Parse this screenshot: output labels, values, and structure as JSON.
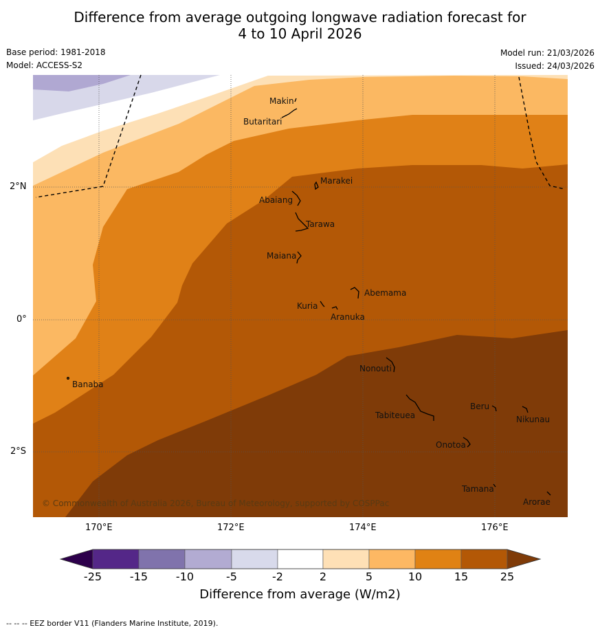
{
  "title": {
    "line1": "Difference from average outgoing longwave radiation forecast for",
    "line2": "4 to 10 April 2026"
  },
  "meta": {
    "base_period": "Base period: 1981-2018",
    "model": "Model: ACCESS-S2",
    "model_run": "Model run: 21/03/2026",
    "issued": "Issued: 24/03/2026"
  },
  "map": {
    "lon_ticks": [
      "170°E",
      "172°E",
      "174°E",
      "176°E"
    ],
    "lat_ticks": [
      "2°N",
      "0°",
      "2°S"
    ],
    "places": [
      "Makin",
      "Butaritari",
      "Marakei",
      "Abaiang",
      "Tarawa",
      "Maiana",
      "Abemama",
      "Kuria",
      "Aranuka",
      "Banaba",
      "Nonouti",
      "Beru",
      "Nikunau",
      "Tabiteuea",
      "Onotoa",
      "Tamana",
      "Arorae"
    ],
    "credit": "© Commonwealth of Australia 2026, Bureau of Meteorology, supported by COSPPac",
    "colors": {
      "purple_dark": "#8a80b8",
      "purple_mid": "#b0a8d2",
      "purple_light": "#d8d8ea",
      "white": "#ffffff",
      "orange_1": "#fde0b6",
      "orange_2": "#fbb862",
      "orange_3": "#e08117",
      "orange_4": "#b35806",
      "orange_5": "#7f3b08"
    }
  },
  "colorbar": {
    "labels": [
      "-25",
      "-15",
      "-10",
      "-5",
      "-2",
      "2",
      "5",
      "10",
      "15",
      "25"
    ],
    "colors": [
      "#2d004b",
      "#542788",
      "#8073ac",
      "#b2abd2",
      "#d8daeb",
      "#ffffff",
      "#fee0b6",
      "#fdb863",
      "#e08214",
      "#b35806",
      "#7f3b08"
    ],
    "title": "Difference from average (W/m2)"
  },
  "footer": "--  --  -- EEZ border V11 (Flanders Marine Institute, 2019)."
}
